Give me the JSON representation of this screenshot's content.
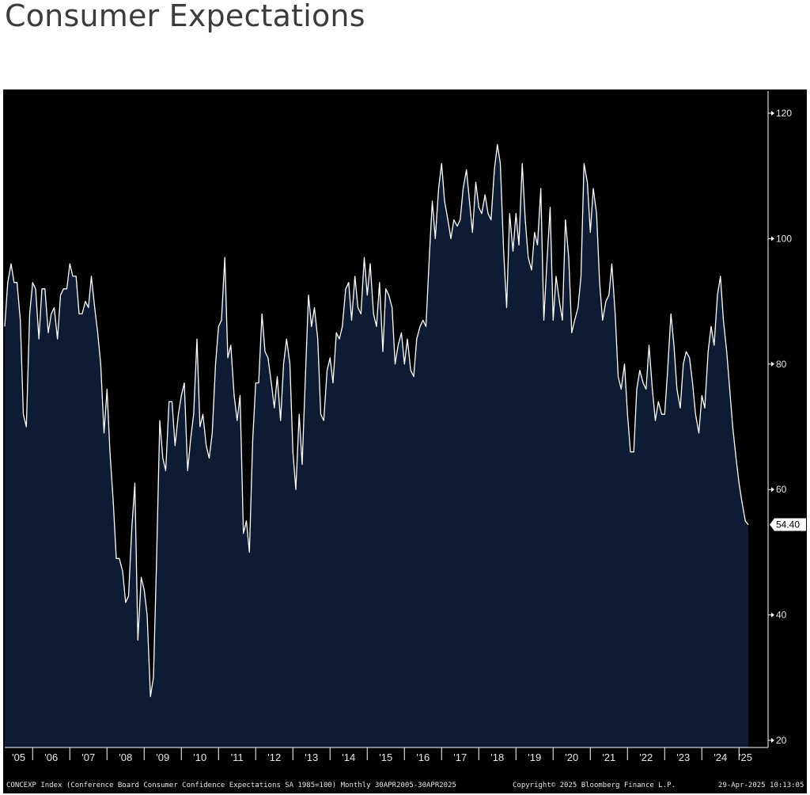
{
  "title": "Consumer Expectations",
  "footer": {
    "description": "CONCEXP Index (Conference Board Consumer Confidence Expectations SA 1985=100)  Monthly 30APR2005-30APR2025",
    "copyright": "Copyright© 2025 Bloomberg Finance L.P.",
    "timestamp": "29-Apr-2025 10:13:05"
  },
  "colors": {
    "background": "#000000",
    "plot_fill": "#0d1b35",
    "line": "#ffffff",
    "axis": "#ffffff",
    "last_value_label_bg": "#ffffff"
  },
  "chart_data": {
    "type": "area",
    "title": "Consumer Expectations",
    "xlabel": "",
    "ylabel": "",
    "x_range": [
      "2005-04",
      "2025-04"
    ],
    "ylim": [
      20,
      124
    ],
    "yticks": [
      20,
      40,
      60,
      80,
      100,
      120
    ],
    "xtick_labels": [
      "'05",
      "'06",
      "'07",
      "'08",
      "'09",
      "'10",
      "'11",
      "'12",
      "'13",
      "'14",
      "'15",
      "'16",
      "'17",
      "'18",
      "'19",
      "'20",
      "'21",
      "'22",
      "'23",
      "'24",
      "'25"
    ],
    "last_value_label": "54.40",
    "y_axis_side": "right",
    "grid": false,
    "series": [
      {
        "values": [
          [
            2005.25,
            86
          ],
          [
            2005.33,
            93
          ],
          [
            2005.42,
            96
          ],
          [
            2005.5,
            93
          ],
          [
            2005.58,
            93
          ],
          [
            2005.67,
            87
          ],
          [
            2005.75,
            72
          ],
          [
            2005.83,
            70
          ],
          [
            2005.92,
            88
          ],
          [
            2006.0,
            93
          ],
          [
            2006.08,
            92
          ],
          [
            2006.17,
            84
          ],
          [
            2006.25,
            92
          ],
          [
            2006.33,
            92
          ],
          [
            2006.42,
            85
          ],
          [
            2006.5,
            88
          ],
          [
            2006.58,
            89
          ],
          [
            2006.67,
            84
          ],
          [
            2006.75,
            91
          ],
          [
            2006.83,
            92
          ],
          [
            2006.92,
            92
          ],
          [
            2007.0,
            96
          ],
          [
            2007.08,
            94
          ],
          [
            2007.17,
            94
          ],
          [
            2007.25,
            88
          ],
          [
            2007.33,
            88
          ],
          [
            2007.42,
            90
          ],
          [
            2007.5,
            89
          ],
          [
            2007.58,
            94
          ],
          [
            2007.67,
            89
          ],
          [
            2007.75,
            85
          ],
          [
            2007.83,
            80
          ],
          [
            2007.92,
            69
          ],
          [
            2008.0,
            76
          ],
          [
            2008.08,
            66
          ],
          [
            2008.17,
            58
          ],
          [
            2008.25,
            49
          ],
          [
            2008.33,
            49
          ],
          [
            2008.42,
            47
          ],
          [
            2008.5,
            42
          ],
          [
            2008.58,
            43
          ],
          [
            2008.67,
            54
          ],
          [
            2008.75,
            61
          ],
          [
            2008.83,
            36
          ],
          [
            2008.92,
            46
          ],
          [
            2009.0,
            44
          ],
          [
            2009.08,
            40
          ],
          [
            2009.17,
            27
          ],
          [
            2009.25,
            30
          ],
          [
            2009.33,
            48
          ],
          [
            2009.42,
            71
          ],
          [
            2009.5,
            65
          ],
          [
            2009.58,
            63
          ],
          [
            2009.67,
            74
          ],
          [
            2009.75,
            74
          ],
          [
            2009.83,
            67
          ],
          [
            2009.92,
            72
          ],
          [
            2010.0,
            75
          ],
          [
            2010.08,
            77
          ],
          [
            2010.17,
            63
          ],
          [
            2010.25,
            68
          ],
          [
            2010.33,
            72
          ],
          [
            2010.42,
            84
          ],
          [
            2010.5,
            70
          ],
          [
            2010.58,
            72
          ],
          [
            2010.67,
            67
          ],
          [
            2010.75,
            65
          ],
          [
            2010.83,
            69
          ],
          [
            2010.92,
            80
          ],
          [
            2011.0,
            86
          ],
          [
            2011.08,
            87
          ],
          [
            2011.17,
            97
          ],
          [
            2011.25,
            81
          ],
          [
            2011.33,
            83
          ],
          [
            2011.42,
            75
          ],
          [
            2011.5,
            71
          ],
          [
            2011.58,
            75
          ],
          [
            2011.67,
            53
          ],
          [
            2011.75,
            55
          ],
          [
            2011.83,
            50
          ],
          [
            2011.92,
            68
          ],
          [
            2012.0,
            77
          ],
          [
            2012.08,
            77
          ],
          [
            2012.17,
            88
          ],
          [
            2012.25,
            82
          ],
          [
            2012.33,
            81
          ],
          [
            2012.42,
            77
          ],
          [
            2012.5,
            73
          ],
          [
            2012.58,
            78
          ],
          [
            2012.67,
            71
          ],
          [
            2012.75,
            80
          ],
          [
            2012.83,
            84
          ],
          [
            2012.92,
            80
          ],
          [
            2013.0,
            66
          ],
          [
            2013.08,
            60
          ],
          [
            2013.17,
            72
          ],
          [
            2013.25,
            64
          ],
          [
            2013.33,
            77
          ],
          [
            2013.42,
            91
          ],
          [
            2013.5,
            86
          ],
          [
            2013.58,
            89
          ],
          [
            2013.67,
            84
          ],
          [
            2013.75,
            72
          ],
          [
            2013.83,
            71
          ],
          [
            2013.92,
            79
          ],
          [
            2014.0,
            81
          ],
          [
            2014.08,
            77
          ],
          [
            2014.17,
            85
          ],
          [
            2014.25,
            84
          ],
          [
            2014.33,
            86
          ],
          [
            2014.42,
            92
          ],
          [
            2014.5,
            93
          ],
          [
            2014.58,
            87
          ],
          [
            2014.67,
            94
          ],
          [
            2014.75,
            89
          ],
          [
            2014.83,
            88
          ],
          [
            2014.92,
            97
          ],
          [
            2015.0,
            91
          ],
          [
            2015.08,
            96
          ],
          [
            2015.17,
            88
          ],
          [
            2015.25,
            86
          ],
          [
            2015.33,
            93
          ],
          [
            2015.42,
            82
          ],
          [
            2015.5,
            92
          ],
          [
            2015.58,
            91
          ],
          [
            2015.67,
            89
          ],
          [
            2015.75,
            80
          ],
          [
            2015.83,
            83
          ],
          [
            2015.92,
            85
          ],
          [
            2016.0,
            80
          ],
          [
            2016.08,
            84
          ],
          [
            2016.17,
            79
          ],
          [
            2016.25,
            78
          ],
          [
            2016.33,
            84
          ],
          [
            2016.42,
            86
          ],
          [
            2016.5,
            87
          ],
          [
            2016.58,
            86
          ],
          [
            2016.67,
            97
          ],
          [
            2016.75,
            106
          ],
          [
            2016.83,
            100
          ],
          [
            2016.92,
            108
          ],
          [
            2017.0,
            112
          ],
          [
            2017.08,
            106
          ],
          [
            2017.17,
            103
          ],
          [
            2017.25,
            100
          ],
          [
            2017.33,
            103
          ],
          [
            2017.42,
            102
          ],
          [
            2017.5,
            103
          ],
          [
            2017.58,
            108
          ],
          [
            2017.67,
            111
          ],
          [
            2017.75,
            106
          ],
          [
            2017.83,
            101
          ],
          [
            2017.92,
            109
          ],
          [
            2018.0,
            105
          ],
          [
            2018.08,
            104
          ],
          [
            2018.17,
            107
          ],
          [
            2018.25,
            104
          ],
          [
            2018.33,
            103
          ],
          [
            2018.42,
            111
          ],
          [
            2018.5,
            115
          ],
          [
            2018.58,
            112
          ],
          [
            2018.67,
            98
          ],
          [
            2018.75,
            89
          ],
          [
            2018.83,
            104
          ],
          [
            2018.92,
            98
          ],
          [
            2019.0,
            104
          ],
          [
            2019.08,
            99
          ],
          [
            2019.17,
            112
          ],
          [
            2019.25,
            103
          ],
          [
            2019.33,
            97
          ],
          [
            2019.42,
            95
          ],
          [
            2019.5,
            101
          ],
          [
            2019.58,
            99
          ],
          [
            2019.67,
            108
          ],
          [
            2019.75,
            87
          ],
          [
            2019.83,
            96
          ],
          [
            2019.92,
            105
          ],
          [
            2020.0,
            87
          ],
          [
            2020.08,
            94
          ],
          [
            2020.17,
            90
          ],
          [
            2020.25,
            87
          ],
          [
            2020.33,
            103
          ],
          [
            2020.42,
            97
          ],
          [
            2020.5,
            85
          ],
          [
            2020.58,
            87
          ],
          [
            2020.67,
            89
          ],
          [
            2020.75,
            94
          ],
          [
            2020.83,
            112
          ],
          [
            2020.92,
            109
          ],
          [
            2021.0,
            101
          ],
          [
            2021.08,
            108
          ],
          [
            2021.17,
            104
          ],
          [
            2021.25,
            93
          ],
          [
            2021.33,
            87
          ],
          [
            2021.42,
            90
          ],
          [
            2021.5,
            91
          ],
          [
            2021.58,
            96
          ],
          [
            2021.67,
            88
          ],
          [
            2021.75,
            78
          ],
          [
            2021.83,
            76
          ],
          [
            2021.92,
            80
          ],
          [
            2022.0,
            72
          ],
          [
            2022.08,
            66
          ],
          [
            2022.17,
            66
          ],
          [
            2022.25,
            76
          ],
          [
            2022.33,
            79
          ],
          [
            2022.42,
            77
          ],
          [
            2022.5,
            76
          ],
          [
            2022.58,
            83
          ],
          [
            2022.67,
            76
          ],
          [
            2022.75,
            71
          ],
          [
            2022.83,
            74
          ],
          [
            2022.92,
            72
          ],
          [
            2023.0,
            72
          ],
          [
            2023.08,
            79
          ],
          [
            2023.17,
            88
          ],
          [
            2023.25,
            83
          ],
          [
            2023.33,
            76
          ],
          [
            2023.42,
            73
          ],
          [
            2023.5,
            80
          ],
          [
            2023.58,
            82
          ],
          [
            2023.67,
            81
          ],
          [
            2023.75,
            77
          ],
          [
            2023.83,
            72
          ],
          [
            2023.92,
            69
          ],
          [
            2024.0,
            75
          ],
          [
            2024.08,
            73
          ],
          [
            2024.17,
            82
          ],
          [
            2024.25,
            86
          ],
          [
            2024.33,
            83
          ],
          [
            2024.42,
            91
          ],
          [
            2024.5,
            94
          ],
          [
            2024.58,
            87
          ],
          [
            2024.67,
            82
          ],
          [
            2024.75,
            76
          ],
          [
            2024.83,
            70
          ],
          [
            2024.92,
            65
          ],
          [
            2025.0,
            61
          ],
          [
            2025.08,
            58
          ],
          [
            2025.17,
            55
          ],
          [
            2025.25,
            54.4
          ]
        ]
      }
    ]
  }
}
